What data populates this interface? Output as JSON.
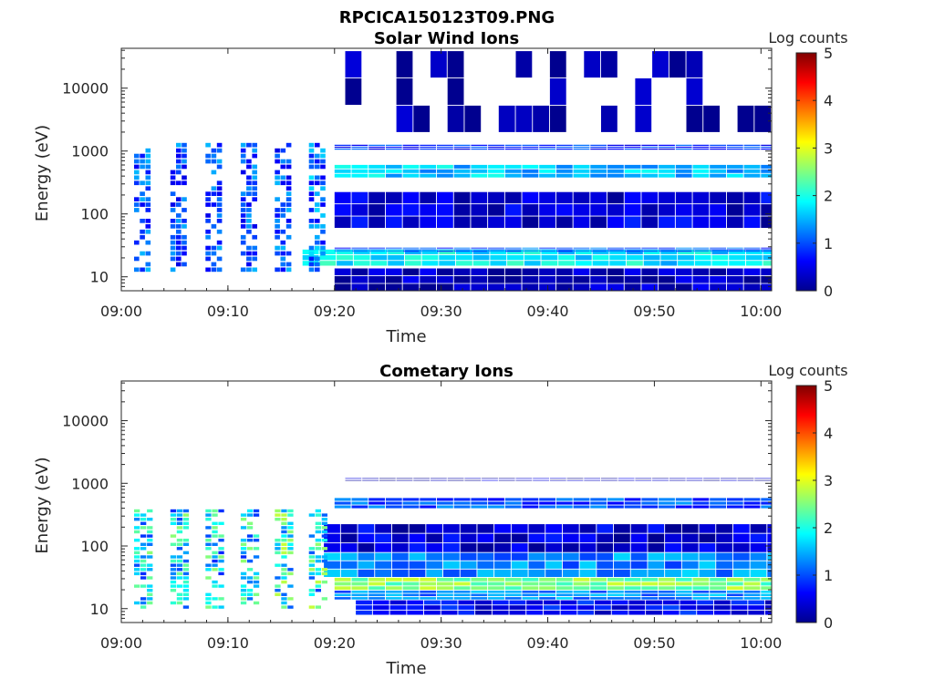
{
  "figure": {
    "title": "RPCICA150123T09.PNG"
  },
  "colors": {
    "jet": [
      "#00008f",
      "#0000ff",
      "#0080ff",
      "#00ffff",
      "#80ff80",
      "#ffff00",
      "#ff8000",
      "#ff0000",
      "#800000"
    ],
    "background": "#ffffff",
    "axis": "#262626"
  },
  "chart_data": [
    {
      "type": "heatmap",
      "title": "Solar Wind Ions",
      "xlabel": "Time",
      "ylabel": "Energy (eV)",
      "x_ticks": [
        "09:00",
        "09:10",
        "09:20",
        "09:30",
        "09:40",
        "09:50",
        "10:00"
      ],
      "x_range_minutes": [
        0,
        61
      ],
      "y_scale": "log",
      "y_ticks": [
        "10",
        "100",
        "1000",
        "10000"
      ],
      "y_range": [
        6,
        43000
      ],
      "colorbar": {
        "label": "Log counts",
        "range": [
          0,
          5
        ],
        "ticks": [
          "0",
          "1",
          "2",
          "3",
          "4",
          "5"
        ],
        "colormap": "jet"
      },
      "bands": [
        {
          "e_min": 15,
          "e_max": 28,
          "log_counts": 1.8,
          "from_min": 17
        },
        {
          "e_min": 25,
          "e_max": 30,
          "log_counts": 1.0,
          "from_min": 20
        },
        {
          "e_min": 6,
          "e_max": 14,
          "log_counts": 0.2,
          "from_min": 20
        },
        {
          "e_min": 60,
          "e_max": 230,
          "log_counts": 0.4,
          "from_min": 20
        },
        {
          "e_min": 380,
          "e_max": 620,
          "log_counts": 1.6,
          "from_min": 20
        },
        {
          "e_min": 1050,
          "e_max": 1300,
          "log_counts": 0.8,
          "from_min": 20
        },
        {
          "e_min": 2000,
          "e_max": 40000,
          "log_counts": 0.05,
          "from_min": 21
        }
      ],
      "bursts": [
        {
          "t_min": 1.2,
          "width_min": 1.6,
          "e_min": 12,
          "e_max": 1400,
          "log_counts": 1.2
        },
        {
          "t_min": 4.6,
          "width_min": 1.6,
          "e_min": 12,
          "e_max": 1400,
          "log_counts": 1.2
        },
        {
          "t_min": 7.9,
          "width_min": 1.6,
          "e_min": 12,
          "e_max": 1400,
          "log_counts": 1.2
        },
        {
          "t_min": 11.2,
          "width_min": 1.6,
          "e_min": 12,
          "e_max": 1400,
          "log_counts": 1.2
        },
        {
          "t_min": 14.4,
          "width_min": 1.6,
          "e_min": 12,
          "e_max": 1400,
          "log_counts": 1.2
        },
        {
          "t_min": 17.6,
          "width_min": 1.6,
          "e_min": 12,
          "e_max": 1400,
          "log_counts": 1.4
        }
      ]
    },
    {
      "type": "heatmap",
      "title": "Cometary Ions",
      "xlabel": "Time",
      "ylabel": "Energy (eV)",
      "x_ticks": [
        "09:00",
        "09:10",
        "09:20",
        "09:30",
        "09:40",
        "09:50",
        "10:00"
      ],
      "x_range_minutes": [
        0,
        61
      ],
      "y_scale": "log",
      "y_ticks": [
        "10",
        "100",
        "1000",
        "10000"
      ],
      "y_range": [
        6,
        43000
      ],
      "colorbar": {
        "label": "Log counts",
        "range": [
          0,
          5
        ],
        "ticks": [
          "0",
          "1",
          "2",
          "3",
          "4",
          "5"
        ],
        "colormap": "jet"
      },
      "bands": [
        {
          "e_min": 20,
          "e_max": 32,
          "log_counts": 2.5,
          "from_min": 20
        },
        {
          "e_min": 14,
          "e_max": 20,
          "log_counts": 1.3,
          "from_min": 20
        },
        {
          "e_min": 8,
          "e_max": 14,
          "log_counts": 0.6,
          "from_min": 22
        },
        {
          "e_min": 32,
          "e_max": 80,
          "log_counts": 1.3,
          "from_min": 19
        },
        {
          "e_min": 80,
          "e_max": 230,
          "log_counts": 0.4,
          "from_min": 19
        },
        {
          "e_min": 400,
          "e_max": 600,
          "log_counts": 1.0,
          "from_min": 20
        },
        {
          "e_min": 1100,
          "e_max": 1250,
          "log_counts": 0.2,
          "from_min": 21
        }
      ],
      "bursts": [
        {
          "t_min": 1.2,
          "width_min": 1.8,
          "e_min": 10,
          "e_max": 400,
          "log_counts": 2.0
        },
        {
          "t_min": 4.6,
          "width_min": 1.8,
          "e_min": 10,
          "e_max": 400,
          "log_counts": 2.0
        },
        {
          "t_min": 7.9,
          "width_min": 1.8,
          "e_min": 10,
          "e_max": 400,
          "log_counts": 2.0
        },
        {
          "t_min": 11.2,
          "width_min": 1.8,
          "e_min": 10,
          "e_max": 400,
          "log_counts": 2.0
        },
        {
          "t_min": 14.4,
          "width_min": 1.8,
          "e_min": 10,
          "e_max": 400,
          "log_counts": 2.2
        },
        {
          "t_min": 17.6,
          "width_min": 1.8,
          "e_min": 10,
          "e_max": 400,
          "log_counts": 2.2
        }
      ]
    }
  ]
}
